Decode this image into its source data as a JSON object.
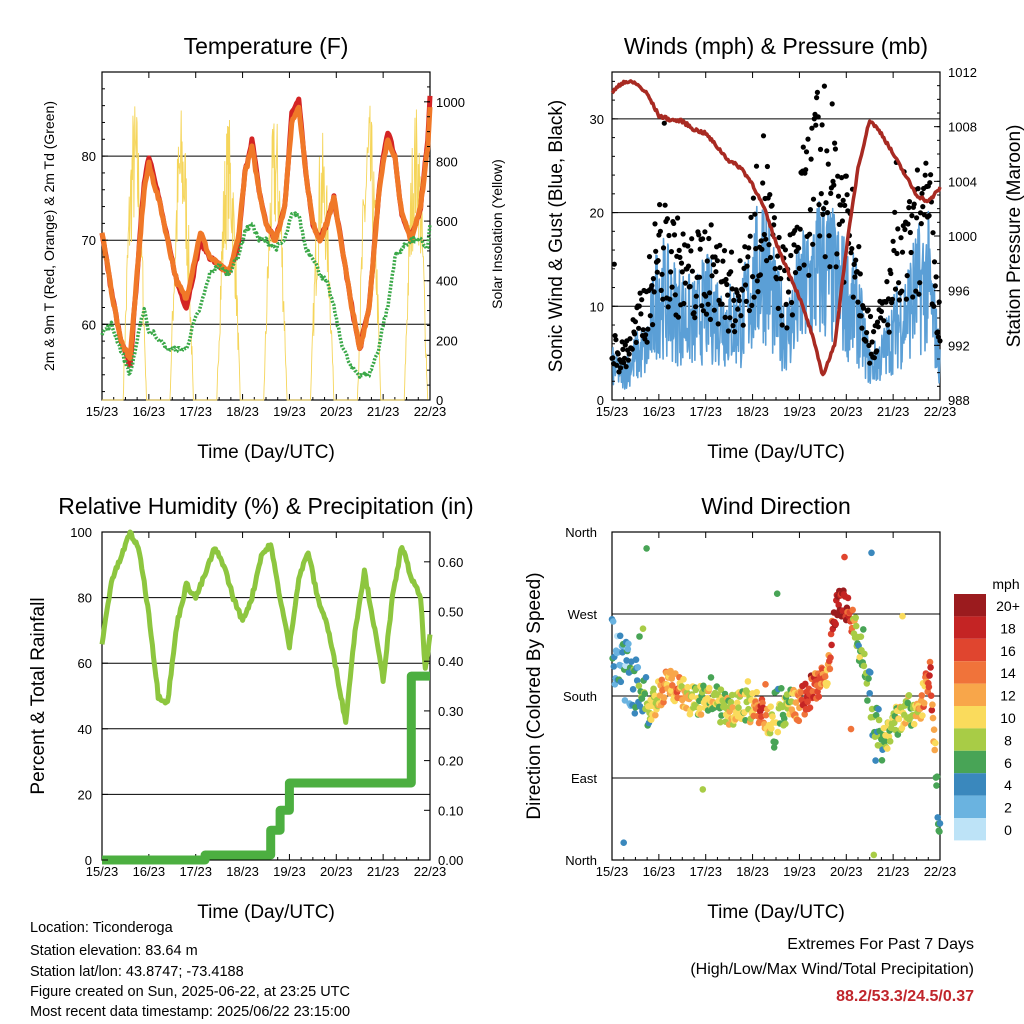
{
  "chart_data": [
    {
      "type": "line",
      "title": "Temperature (F)",
      "xlabel": "Time (Day/UTC)",
      "ylabel": "2m & 9m T (Red, Orange) & 2m Td (Green)",
      "ylabel_right": "Solar Insolation (Yellow)",
      "x_ticks": [
        "15/23",
        "16/23",
        "17/23",
        "18/23",
        "19/23",
        "20/23",
        "21/23",
        "22/23"
      ],
      "ylim": [
        51,
        90
      ],
      "y_ticks": [
        60,
        70,
        80
      ],
      "ylim_right": [
        0,
        1100
      ],
      "y_ticks_right": [
        0,
        200,
        400,
        600,
        800,
        1000
      ],
      "x": [
        0,
        0.2,
        0.4,
        0.6,
        0.75,
        0.9,
        1.0,
        1.1,
        1.25,
        1.4,
        1.6,
        1.8,
        1.95,
        2.1,
        2.3,
        2.5,
        2.7,
        2.9,
        3.05,
        3.2,
        3.35,
        3.5,
        3.7,
        3.9,
        4.05,
        4.2,
        4.35,
        4.5,
        4.65,
        4.8,
        4.95,
        5.1,
        5.3,
        5.5,
        5.7,
        5.9,
        6.0,
        6.1,
        6.25,
        6.4,
        6.6,
        6.8,
        6.95,
        7.0
      ],
      "series": [
        {
          "name": "2m T",
          "color": "#d42424",
          "values": [
            71,
            64,
            58,
            55,
            66,
            77,
            80,
            78,
            74,
            70,
            65,
            62,
            66,
            70,
            68,
            67,
            66,
            69,
            78,
            82,
            76,
            72,
            70,
            74,
            85,
            87,
            78,
            72,
            70,
            72,
            75,
            70,
            63,
            57,
            62,
            75,
            80,
            83,
            80,
            73,
            70,
            74,
            82,
            87
          ]
        },
        {
          "name": "9m T",
          "color": "#f07828",
          "values": [
            71,
            64,
            58,
            56,
            66,
            76,
            79,
            77,
            74,
            70,
            65,
            63,
            67,
            71,
            68,
            67,
            66,
            70,
            78,
            81,
            76,
            72,
            70,
            74,
            84,
            86,
            78,
            72,
            70,
            72,
            75,
            70,
            63,
            57,
            62,
            75,
            79,
            82,
            80,
            73,
            70,
            74,
            81,
            86
          ]
        },
        {
          "name": "2m Td",
          "color": "#3aa848",
          "values": [
            59,
            60,
            57,
            54,
            58,
            62,
            59,
            59,
            58,
            57,
            57,
            57,
            60,
            62,
            66,
            67,
            66,
            68,
            71,
            72,
            70,
            70,
            69,
            70,
            73,
            73,
            69,
            68,
            66,
            65,
            62,
            58,
            55,
            54,
            54,
            57,
            60,
            62,
            68,
            69,
            70,
            70,
            69,
            72
          ]
        }
      ],
      "solar": {
        "name": "Solar Insolation",
        "color": "#f5d55a",
        "peaks": [
          1020,
          1000,
          960,
          980,
          900,
          1000,
          1000,
          980
        ]
      }
    },
    {
      "type": "line",
      "title": "Winds (mph) & Pressure (mb)",
      "xlabel": "Time (Day/UTC)",
      "ylabel": "Sonic Wind & Gust (Blue, Black)",
      "ylabel_right": "Station Pressure (Maroon)",
      "x_ticks": [
        "15/23",
        "16/23",
        "17/23",
        "18/23",
        "19/23",
        "20/23",
        "21/23",
        "22/23"
      ],
      "ylim": [
        0,
        35
      ],
      "y_ticks": [
        0,
        10,
        20,
        30
      ],
      "ylim_right": [
        988,
        1012
      ],
      "y_ticks_right": [
        988,
        992,
        996,
        1000,
        1004,
        1008,
        1012
      ],
      "x": [
        0,
        0.25,
        0.5,
        0.75,
        1.0,
        1.25,
        1.5,
        1.75,
        2.0,
        2.25,
        2.5,
        2.75,
        3.0,
        3.25,
        3.5,
        3.75,
        4.0,
        4.25,
        4.5,
        4.75,
        5.0,
        5.25,
        5.5,
        5.75,
        6.0,
        6.25,
        6.5,
        6.75,
        7.0
      ],
      "series": [
        {
          "name": "Wind",
          "color": "#5b9fd6",
          "values": [
            4,
            3,
            5,
            6,
            13,
            11,
            10,
            9,
            11,
            10,
            9,
            9,
            13,
            17,
            10,
            8,
            12,
            14,
            16,
            14,
            12,
            10,
            4,
            5,
            8,
            10,
            13,
            14,
            4
          ]
        },
        {
          "name": "Gust",
          "color": "#000000",
          "values": [
            6,
            5,
            8,
            11,
            18,
            17,
            15,
            14,
            16,
            14,
            13,
            12,
            18,
            24,
            15,
            13,
            20,
            25,
            27,
            25,
            22,
            16,
            7,
            9,
            14,
            16,
            19,
            21,
            8
          ]
        },
        {
          "name": "Pressure",
          "color": "#a82a22",
          "values": [
            1010.5,
            1011.3,
            1011.2,
            1010.4,
            1008.8,
            1008.5,
            1008.4,
            1007.8,
            1007.5,
            1006.5,
            1005.5,
            1005,
            1003.8,
            1002,
            999.5,
            997.5,
            995.5,
            993,
            989.8,
            992,
            999,
            1005,
            1008.5,
            1007.5,
            1006,
            1004.5,
            1003,
            1002.5,
            1003.5
          ]
        }
      ]
    },
    {
      "type": "line",
      "title": "Relative Humidity (%) & Precipitation (in)",
      "xlabel": "Time (Day/UTC)",
      "ylabel": "Percent & Total Rainfall",
      "x_ticks": [
        "15/23",
        "16/23",
        "17/23",
        "18/23",
        "19/23",
        "20/23",
        "21/23",
        "22/23"
      ],
      "ylim": [
        0,
        100
      ],
      "y_ticks": [
        0,
        20,
        40,
        60,
        80,
        100
      ],
      "ylim_right": [
        0,
        0.66
      ],
      "y_ticks_right": [
        "0.00",
        "0.10",
        "0.20",
        "0.30",
        "0.40",
        "0.50",
        "0.60"
      ],
      "x": [
        0,
        0.2,
        0.4,
        0.6,
        0.8,
        1.0,
        1.2,
        1.4,
        1.6,
        1.8,
        2.0,
        2.2,
        2.4,
        2.6,
        2.8,
        3.0,
        3.2,
        3.4,
        3.6,
        3.8,
        4.0,
        4.2,
        4.4,
        4.6,
        4.8,
        5.0,
        5.2,
        5.4,
        5.6,
        5.8,
        6.0,
        6.2,
        6.4,
        6.6,
        6.8,
        6.9,
        7.0
      ],
      "series": [
        {
          "name": "Relative Humidity",
          "color": "#8dc63f",
          "values": [
            66,
            85,
            92,
            100,
            94,
            75,
            50,
            48,
            72,
            84,
            80,
            87,
            95,
            90,
            80,
            73,
            80,
            93,
            96,
            80,
            65,
            86,
            94,
            80,
            72,
            58,
            42,
            70,
            88,
            72,
            55,
            80,
            96,
            86,
            80,
            58,
            68
          ]
        },
        {
          "name": "Total Rainfall",
          "color": "#4caf40",
          "values": [
            0,
            0,
            0,
            0,
            0,
            0,
            0,
            0,
            0,
            0,
            0,
            0.01,
            0.01,
            0.01,
            0.01,
            0.01,
            0.01,
            0.01,
            0.06,
            0.1,
            0.155,
            0.155,
            0.155,
            0.155,
            0.155,
            0.155,
            0.155,
            0.155,
            0.155,
            0.155,
            0.155,
            0.155,
            0.155,
            0.37,
            0.37,
            0.37,
            0.37
          ]
        }
      ]
    },
    {
      "type": "scatter",
      "title": "Wind Direction",
      "xlabel": "Time (Day/UTC)",
      "ylabel": "Direction (Colored By Speed)",
      "x_ticks": [
        "15/23",
        "16/23",
        "17/23",
        "18/23",
        "19/23",
        "20/23",
        "21/23",
        "22/23"
      ],
      "y_ticks": [
        "North",
        "East",
        "South",
        "West",
        "North"
      ],
      "ylim": [
        0,
        360
      ],
      "x": [
        0,
        0.2,
        0.4,
        0.6,
        0.8,
        1.0,
        1.2,
        1.4,
        1.6,
        1.8,
        2.0,
        2.2,
        2.4,
        2.6,
        2.8,
        3.0,
        3.2,
        3.4,
        3.6,
        3.8,
        4.0,
        4.2,
        4.4,
        4.6,
        4.8,
        5.0,
        5.2,
        5.4,
        5.6,
        5.8,
        6.0,
        6.2,
        6.4,
        6.6,
        6.8,
        7.0
      ],
      "directions": [
        230,
        215,
        200,
        175,
        160,
        185,
        192,
        188,
        180,
        172,
        175,
        178,
        170,
        162,
        170,
        168,
        165,
        152,
        160,
        170,
        170,
        182,
        195,
        205,
        285,
        280,
        250,
        215,
        145,
        130,
        150,
        160,
        165,
        170,
        205,
        20
      ],
      "speeds": [
        4,
        3,
        4,
        6,
        7,
        12,
        12,
        13,
        10,
        9,
        9,
        8,
        9,
        10,
        8,
        11,
        17,
        8,
        7,
        9,
        14,
        17,
        15,
        12,
        20,
        19,
        8,
        6,
        6,
        8,
        8,
        10,
        8,
        12,
        16,
        3
      ],
      "colorbar_title": "mph",
      "colorbar_labels": [
        "20+",
        "18",
        "16",
        "14",
        "12",
        "10",
        "8",
        "6",
        "4",
        "2",
        "0"
      ],
      "colorbar_colors": [
        "#9b1b1e",
        "#c42424",
        "#e0452f",
        "#f0733a",
        "#f8a64a",
        "#fadb5c",
        "#a8cc46",
        "#48a456",
        "#3a88bd",
        "#6ab3e0",
        "#bde3f7"
      ]
    }
  ],
  "info": {
    "location": "Location: Ticonderoga",
    "elevation": "Station elevation: 83.64 m",
    "latlon": "Station lat/lon: 43.8747; -73.4188",
    "created": "Figure created on Sun, 2025-06-22, at 23:25 UTC",
    "recent": "Most recent data timestamp: 2025/06/22 23:15:00"
  },
  "extremes": {
    "title": "Extremes For Past 7 Days",
    "subtitle": "(High/Low/Max Wind/Total Precipitation)",
    "values": "88.2/53.3/24.5/0.37"
  }
}
